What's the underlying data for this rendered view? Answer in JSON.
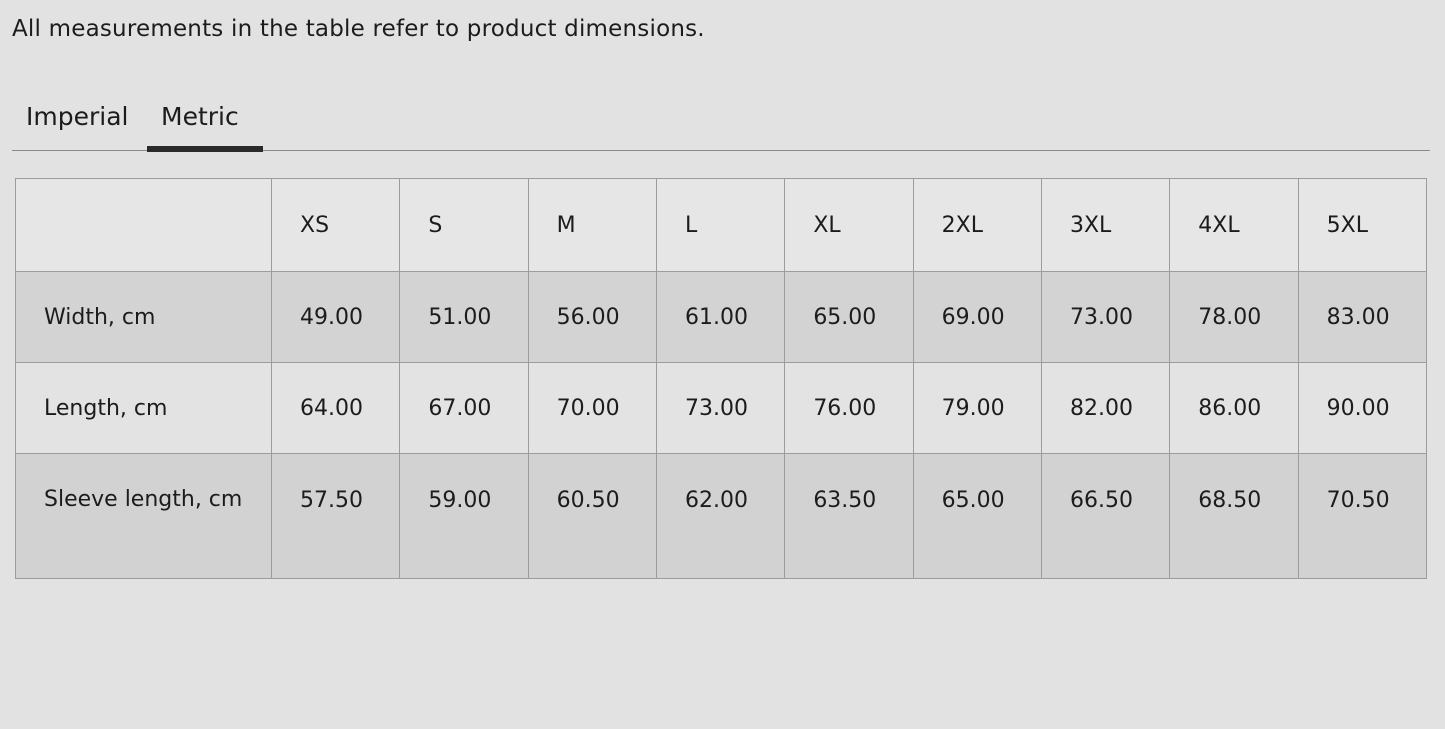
{
  "note": "All measurements in the table refer to product dimensions.",
  "tabs": [
    {
      "label": "Imperial",
      "active": false
    },
    {
      "label": "Metric",
      "active": true
    }
  ],
  "table": {
    "sizes": [
      "XS",
      "S",
      "M",
      "L",
      "XL",
      "2XL",
      "3XL",
      "4XL",
      "5XL"
    ],
    "rows": [
      {
        "label": "Width, cm",
        "values": [
          "49.00",
          "51.00",
          "56.00",
          "61.00",
          "65.00",
          "69.00",
          "73.00",
          "78.00",
          "83.00"
        ]
      },
      {
        "label": "Length, cm",
        "values": [
          "64.00",
          "67.00",
          "70.00",
          "73.00",
          "76.00",
          "79.00",
          "82.00",
          "86.00",
          "90.00"
        ]
      },
      {
        "label": "Sleeve length, cm",
        "values": [
          "57.50",
          "59.00",
          "60.50",
          "62.00",
          "63.50",
          "65.00",
          "66.50",
          "68.50",
          "70.50"
        ]
      }
    ]
  }
}
